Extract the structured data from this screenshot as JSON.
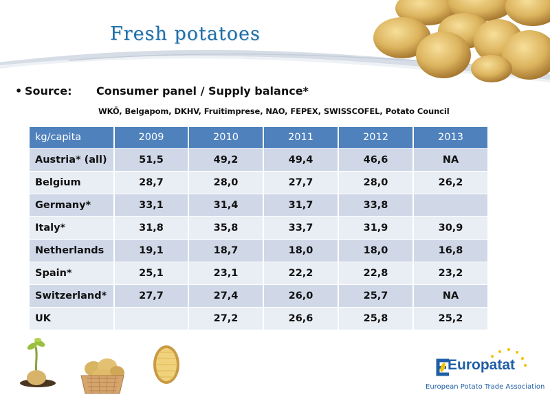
{
  "title": "Fresh potatoes",
  "source": {
    "bullet": "•",
    "label": "Source:",
    "value": "Consumer panel / Supply balance*",
    "organizations": "WKÖ, Belgapom, DKHV, Fruitimprese, NAO, FEPEX, SWISSCOFEL,  Potato Council"
  },
  "table": {
    "header": [
      "kg/capita",
      "2009",
      "2010",
      "2011",
      "2012",
      "2013"
    ],
    "rows": [
      [
        "Austria* (all)",
        "51,5",
        "49,2",
        "49,4",
        "46,6",
        "NA"
      ],
      [
        "Belgium",
        "28,7",
        "28,0",
        "27,7",
        "28,0",
        "26,2"
      ],
      [
        "Germany*",
        "33,1",
        "31,4",
        "31,7",
        "33,8",
        ""
      ],
      [
        "Italy*",
        "31,8",
        "35,8",
        "33,7",
        "31,9",
        "30,9"
      ],
      [
        "Netherlands",
        "19,1",
        "18,7",
        "18,0",
        "18,0",
        "16,8"
      ],
      [
        "Spain*",
        "25,1",
        "23,1",
        "22,2",
        "22,8",
        "23,2"
      ],
      [
        "Switzerland*",
        "27,7",
        "27,4",
        "26,0",
        "25,7",
        "NA"
      ],
      [
        "UK",
        "",
        "27,2",
        "26,6",
        "25,8",
        "25,2"
      ]
    ]
  },
  "logo": {
    "word": "Europatat",
    "tagline": "European Potato Trade Association"
  },
  "colors": {
    "title": "#1f6fa8",
    "header_fill": "#4f81bd",
    "row_dark": "#d0d8e8",
    "row_light": "#e9edf4",
    "logo_blue": "#1f5ea6",
    "logo_stars": "#f2c200"
  },
  "icons": [
    "potato-pile-image",
    "sprouting-potato-image",
    "potato-basket-image",
    "half-potato-image",
    "europatat-logo"
  ]
}
